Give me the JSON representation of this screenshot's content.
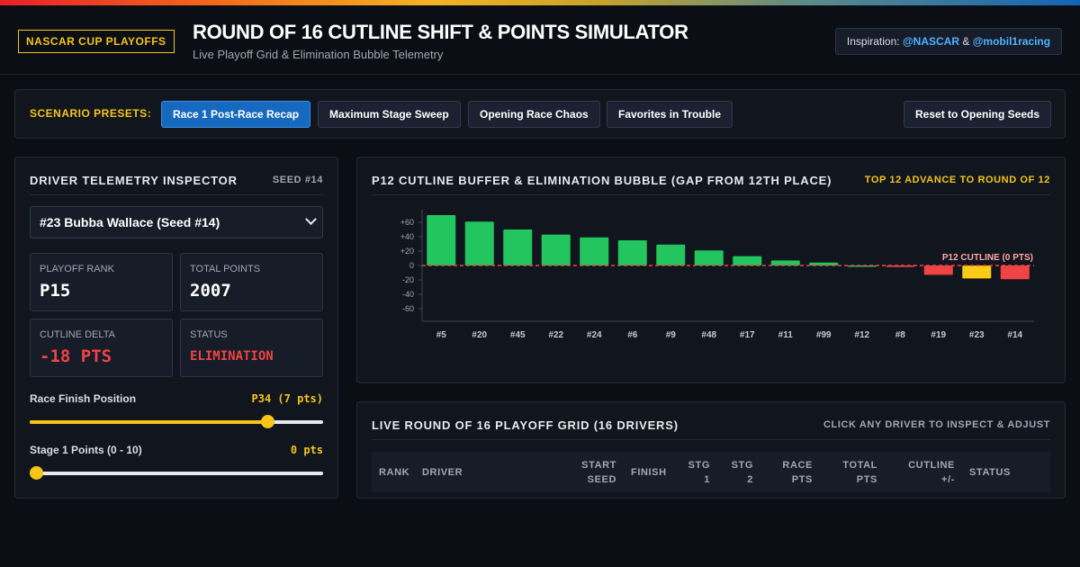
{
  "header": {
    "badge": "NASCAR CUP PLAYOFFS",
    "title": "ROUND OF 16 CUTLINE SHIFT & POINTS SIMULATOR",
    "subtitle": "Live Playoff Grid & Elimination Bubble Telemetry",
    "inspiration_label": "Inspiration:",
    "inspiration_handle1": "@NASCAR",
    "inspiration_amp": "&",
    "inspiration_handle2": "@mobil1racing"
  },
  "presets": {
    "label": "SCENARIO PRESETS:",
    "buttons": [
      "Race 1 Post-Race Recap",
      "Maximum Stage Sweep",
      "Opening Race Chaos",
      "Favorites in Trouble"
    ],
    "active_index": 0,
    "reset_label": "Reset to Opening Seeds"
  },
  "inspector": {
    "title": "DRIVER TELEMETRY INSPECTOR",
    "seed": "SEED #14",
    "selected_driver": "#23 Bubba Wallace (Seed #14)",
    "stats": {
      "rank_label": "PLAYOFF RANK",
      "rank_value": "P15",
      "points_label": "TOTAL POINTS",
      "points_value": "2007",
      "delta_label": "CUTLINE DELTA",
      "delta_value": "-18 PTS",
      "status_label": "STATUS",
      "status_value": "ELIMINATION"
    },
    "finish": {
      "label": "Race Finish Position",
      "value": "P34 (7 pts)",
      "fraction": 0.825
    },
    "stage1": {
      "label": "Stage 1 Points (0 - 10)",
      "value": "0 pts",
      "fraction": 0.0
    }
  },
  "chart_panel": {
    "title": "P12 CUTLINE BUFFER & ELIMINATION BUBBLE (GAP FROM 12TH PLACE)",
    "meta": "TOP 12 ADVANCE TO ROUND OF 12",
    "cutline_label": "P12 CUTLINE (0 PTS)"
  },
  "chart_data": {
    "type": "bar",
    "title": "P12 CUTLINE BUFFER & ELIMINATION BUBBLE (GAP FROM 12TH PLACE)",
    "categories": [
      "#5",
      "#20",
      "#45",
      "#22",
      "#24",
      "#6",
      "#9",
      "#48",
      "#17",
      "#11",
      "#99",
      "#12",
      "#8",
      "#19",
      "#23",
      "#14"
    ],
    "values": [
      70,
      61,
      50,
      43,
      39,
      35,
      29,
      21,
      13,
      7,
      4,
      0,
      -2,
      -13,
      -18,
      -19
    ],
    "bar_colors": [
      "#22c55e",
      "#22c55e",
      "#22c55e",
      "#22c55e",
      "#22c55e",
      "#22c55e",
      "#22c55e",
      "#22c55e",
      "#22c55e",
      "#22c55e",
      "#22c55e",
      "#22c55e",
      "#ef4444",
      "#ef4444",
      "#facc15",
      "#ef4444"
    ],
    "yticks": [
      "+60",
      "+40",
      "+20",
      "0",
      "-20",
      "-40",
      "-60"
    ],
    "ytick_values": [
      60,
      40,
      20,
      0,
      -20,
      -40,
      -60
    ],
    "ylim": [
      -75,
      75
    ],
    "cutline_value": 0,
    "grid": false
  },
  "grid_panel": {
    "title": "LIVE ROUND OF 16 PLAYOFF GRID (16 DRIVERS)",
    "meta": "CLICK ANY DRIVER TO INSPECT & ADJUST",
    "columns": {
      "rank": "RANK",
      "driver": "DRIVER",
      "start1": "START",
      "start2": "SEED",
      "finish": "FINISH",
      "stg1a": "STG",
      "stg1b": "1",
      "stg2a": "STG",
      "stg2b": "2",
      "racea": "RACE",
      "raceb": "PTS",
      "totala": "TOTAL",
      "totalb": "PTS",
      "cuta": "CUTLINE",
      "cutb": "+/-",
      "status": "STATUS"
    }
  },
  "colors": {
    "accent": "#f5c518",
    "brand_blue": "#1669bf",
    "safe": "#22c55e",
    "danger": "#ef4444",
    "bubble": "#facc15"
  }
}
